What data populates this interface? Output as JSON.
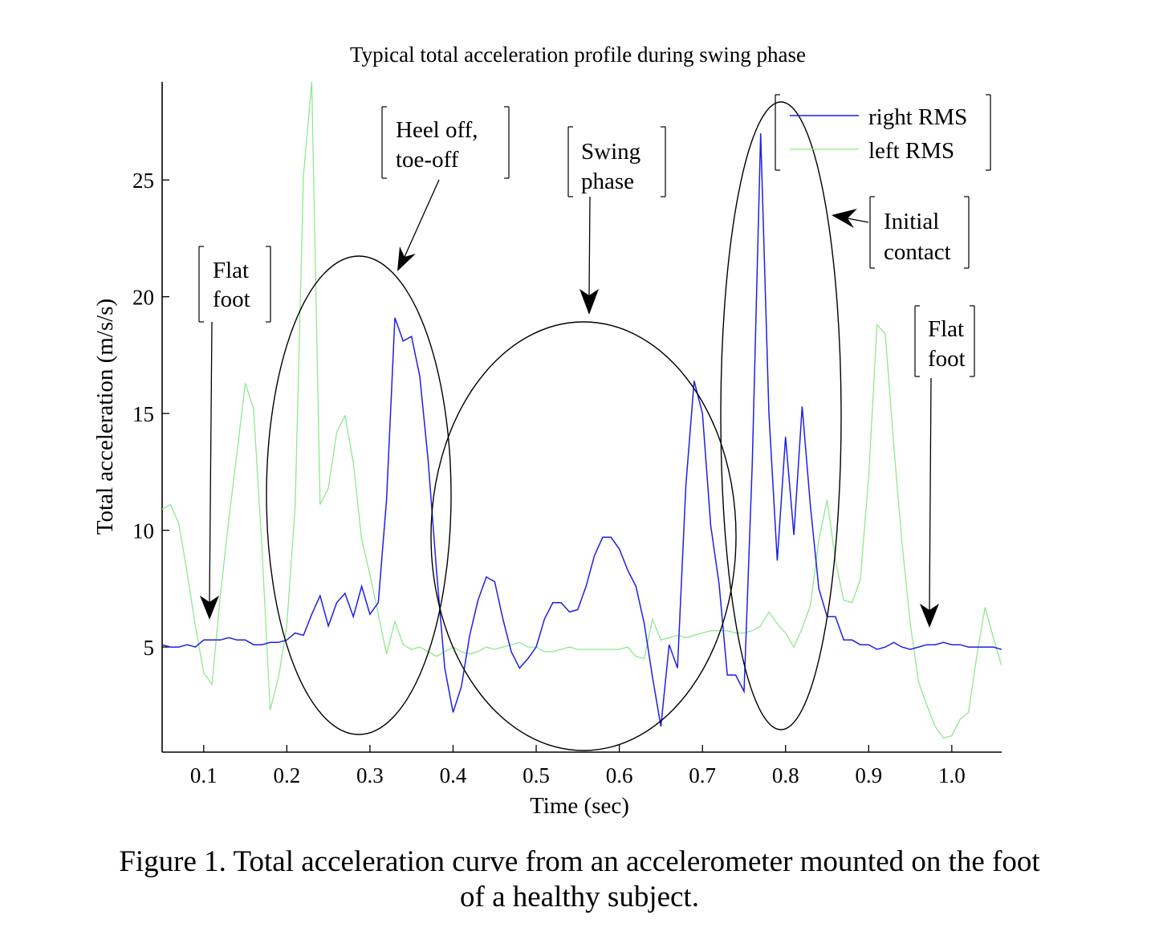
{
  "figure": {
    "caption_line1": "Figure 1. Total acceleration curve from an accelerometer mounted on the foot",
    "caption_line2": "of a healthy subject."
  },
  "colors": {
    "right_rms": "#1f1fe6",
    "left_rms": "#8fe88f",
    "axes": "#000000"
  },
  "chart_data": {
    "type": "line",
    "title": "Typical total acceleration profile during swing phase",
    "xlabel": "Time (sec)",
    "ylabel": "Total acceleration (m/s/s)",
    "xlim": [
      0.05,
      1.06
    ],
    "ylim": [
      0.5,
      29.2
    ],
    "xticks": [
      0.1,
      0.2,
      0.3,
      0.4,
      0.5,
      0.6,
      0.7,
      0.8,
      0.9,
      1.0
    ],
    "xtick_labels": [
      "0.1",
      "0.2",
      "0.3",
      "0.4",
      "0.5",
      "0.6",
      "0.7",
      "0.8",
      "0.9",
      "1.0"
    ],
    "yticks": [
      5,
      10,
      15,
      20,
      25
    ],
    "ytick_labels": [
      "5",
      "10",
      "15",
      "20",
      "25"
    ],
    "grid": false,
    "legend_position": "top-right",
    "series": [
      {
        "name": "right RMS",
        "x": [
          0.05,
          0.06,
          0.07,
          0.08,
          0.09,
          0.1,
          0.11,
          0.12,
          0.13,
          0.14,
          0.15,
          0.16,
          0.17,
          0.18,
          0.19,
          0.2,
          0.21,
          0.22,
          0.23,
          0.24,
          0.25,
          0.26,
          0.27,
          0.28,
          0.29,
          0.3,
          0.31,
          0.32,
          0.33,
          0.34,
          0.35,
          0.36,
          0.37,
          0.38,
          0.39,
          0.4,
          0.41,
          0.42,
          0.43,
          0.44,
          0.45,
          0.46,
          0.47,
          0.48,
          0.49,
          0.5,
          0.51,
          0.52,
          0.53,
          0.54,
          0.55,
          0.56,
          0.57,
          0.58,
          0.59,
          0.6,
          0.61,
          0.62,
          0.63,
          0.64,
          0.65,
          0.66,
          0.67,
          0.68,
          0.69,
          0.7,
          0.71,
          0.72,
          0.73,
          0.74,
          0.75,
          0.76,
          0.77,
          0.78,
          0.79,
          0.8,
          0.81,
          0.82,
          0.83,
          0.84,
          0.85,
          0.86,
          0.87,
          0.88,
          0.89,
          0.9,
          0.91,
          0.92,
          0.93,
          0.94,
          0.95,
          0.96,
          0.97,
          0.98,
          0.99,
          1.0,
          1.01,
          1.02,
          1.03,
          1.04,
          1.05,
          1.06
        ],
        "values": [
          5.1,
          5.0,
          5.0,
          5.1,
          5.0,
          5.3,
          5.3,
          5.3,
          5.4,
          5.3,
          5.3,
          5.1,
          5.1,
          5.2,
          5.2,
          5.3,
          5.6,
          5.5,
          6.4,
          7.2,
          5.9,
          6.9,
          7.3,
          6.3,
          7.6,
          6.4,
          6.9,
          11.3,
          19.1,
          18.1,
          18.3,
          16.6,
          13.0,
          8.3,
          4.1,
          2.2,
          3.3,
          5.5,
          7.0,
          8.0,
          7.8,
          6.2,
          4.8,
          4.1,
          4.5,
          5.0,
          6.2,
          6.9,
          6.9,
          6.5,
          6.6,
          7.6,
          8.9,
          9.7,
          9.7,
          9.2,
          8.3,
          7.6,
          6.0,
          3.7,
          1.6,
          5.1,
          4.1,
          11.9,
          16.4,
          15.0,
          10.2,
          7.7,
          3.8,
          3.8,
          3.1,
          12.9,
          27.0,
          15.0,
          8.7,
          14.0,
          9.8,
          15.3,
          11.0,
          7.5,
          6.3,
          6.3,
          5.3,
          5.3,
          5.1,
          5.1,
          4.9,
          5.0,
          5.2,
          5.0,
          4.9,
          5.0,
          5.1,
          5.1,
          5.2,
          5.1,
          5.1,
          5.0,
          5.0,
          5.0,
          5.0,
          4.9
        ]
      },
      {
        "name": "left RMS",
        "x": [
          0.05,
          0.06,
          0.07,
          0.08,
          0.09,
          0.1,
          0.11,
          0.12,
          0.13,
          0.14,
          0.15,
          0.16,
          0.17,
          0.18,
          0.19,
          0.2,
          0.21,
          0.22,
          0.23,
          0.24,
          0.25,
          0.26,
          0.27,
          0.28,
          0.29,
          0.3,
          0.31,
          0.32,
          0.33,
          0.34,
          0.35,
          0.36,
          0.37,
          0.38,
          0.39,
          0.4,
          0.41,
          0.42,
          0.43,
          0.44,
          0.45,
          0.46,
          0.47,
          0.48,
          0.49,
          0.5,
          0.51,
          0.52,
          0.53,
          0.54,
          0.55,
          0.56,
          0.57,
          0.58,
          0.59,
          0.6,
          0.61,
          0.62,
          0.63,
          0.64,
          0.65,
          0.66,
          0.67,
          0.68,
          0.69,
          0.7,
          0.71,
          0.72,
          0.73,
          0.74,
          0.75,
          0.76,
          0.77,
          0.78,
          0.79,
          0.8,
          0.81,
          0.82,
          0.83,
          0.84,
          0.85,
          0.86,
          0.87,
          0.88,
          0.89,
          0.9,
          0.91,
          0.92,
          0.93,
          0.94,
          0.95,
          0.96,
          0.97,
          0.98,
          0.99,
          1.0,
          1.01,
          1.02,
          1.03,
          1.04,
          1.05,
          1.06
        ],
        "values": [
          10.9,
          11.1,
          10.3,
          8.2,
          5.9,
          3.9,
          3.4,
          7.2,
          10.4,
          13.3,
          16.3,
          15.2,
          9.3,
          2.3,
          3.7,
          5.9,
          11.0,
          25.2,
          29.2,
          11.1,
          11.8,
          14.2,
          14.9,
          12.9,
          9.6,
          8.1,
          6.4,
          4.7,
          6.1,
          5.1,
          4.9,
          5.0,
          4.8,
          4.6,
          4.8,
          5.0,
          4.8,
          4.7,
          4.8,
          5.0,
          4.9,
          5.0,
          5.1,
          5.2,
          5.0,
          5.0,
          4.8,
          4.8,
          4.9,
          5.0,
          4.9,
          4.9,
          4.9,
          4.9,
          4.9,
          4.9,
          5.0,
          4.6,
          4.5,
          6.2,
          5.3,
          5.4,
          5.5,
          5.4,
          5.5,
          5.6,
          5.7,
          5.7,
          5.7,
          5.6,
          5.6,
          5.7,
          5.9,
          6.5,
          6.0,
          5.6,
          5.0,
          5.8,
          6.8,
          9.6,
          11.3,
          8.7,
          7.0,
          6.9,
          7.9,
          12.3,
          18.8,
          18.4,
          13.7,
          9.5,
          6.0,
          3.5,
          2.5,
          1.6,
          1.1,
          1.2,
          1.9,
          2.2,
          4.6,
          6.7,
          5.4,
          4.2
        ]
      }
    ],
    "annotations": [
      {
        "text_lines": [
          "Flat",
          "foot"
        ]
      },
      {
        "text_lines": [
          "Heel off,",
          "toe-off"
        ]
      },
      {
        "text_lines": [
          "Swing",
          "phase"
        ]
      },
      {
        "text_lines": [
          "Initial",
          "contact"
        ]
      },
      {
        "text_lines": [
          "Flat",
          "foot"
        ]
      }
    ]
  }
}
